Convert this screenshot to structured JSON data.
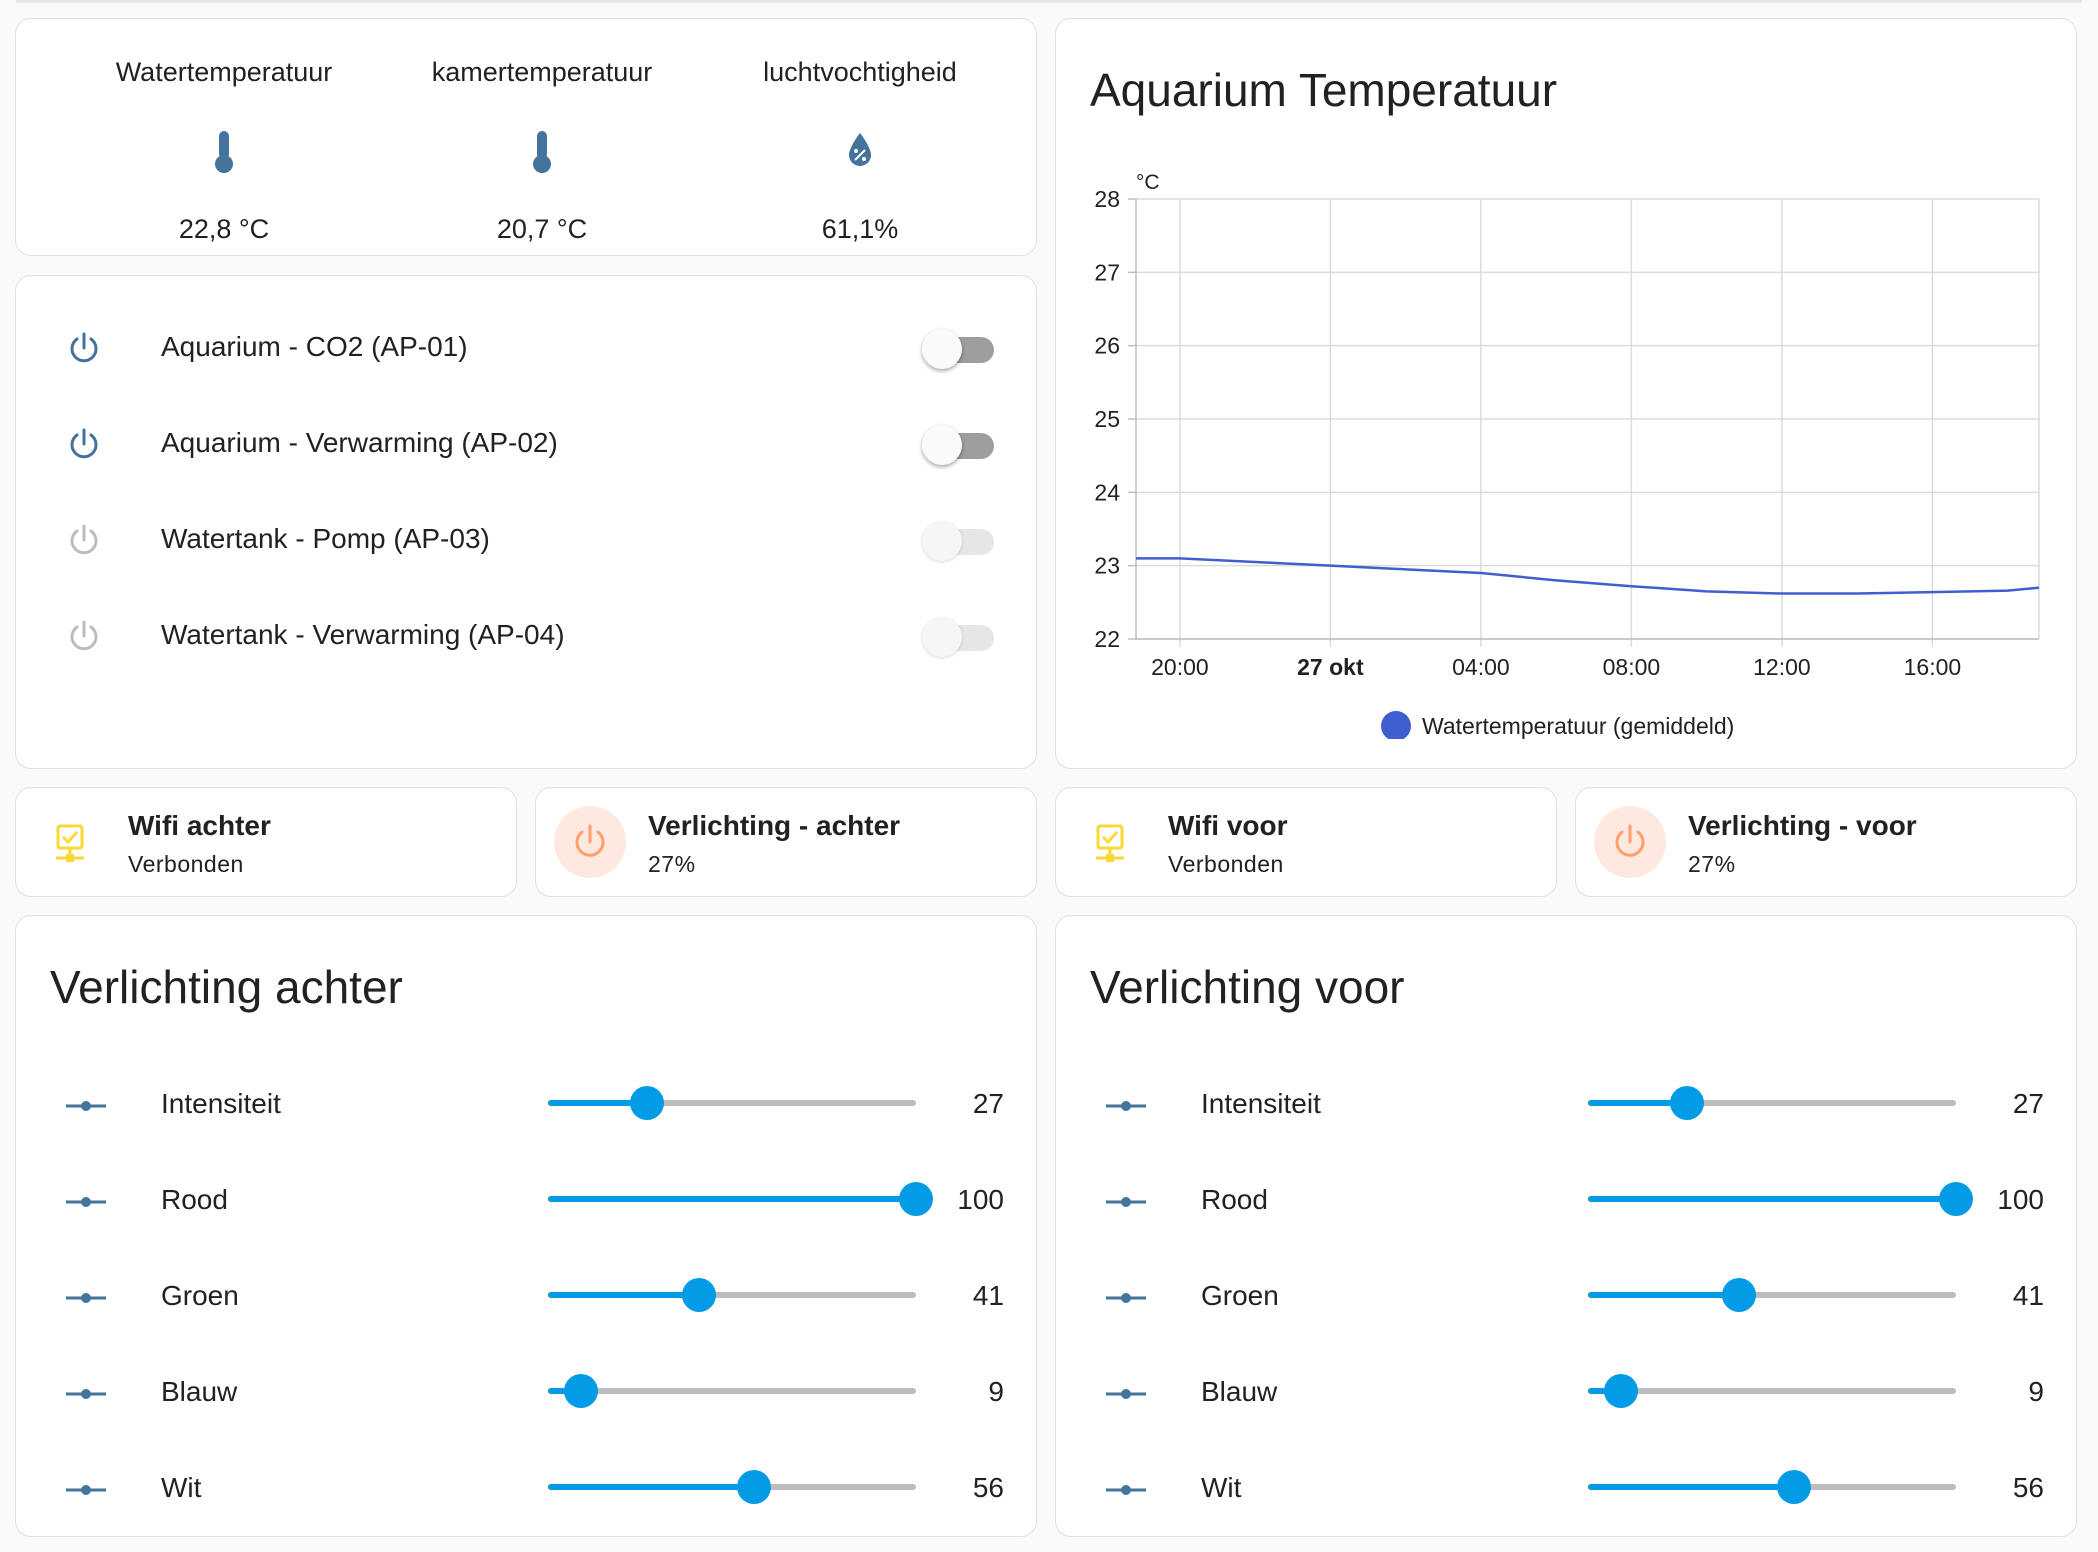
{
  "sensors": [
    {
      "name": "Watertemperatuur",
      "icon": "thermometer-icon",
      "value": "22,8 °C"
    },
    {
      "name": "kamertemperatuur",
      "icon": "thermometer-icon",
      "value": "20,7 °C"
    },
    {
      "name": "luchtvochtigheid",
      "icon": "water-percent-icon",
      "value": "61,1%"
    }
  ],
  "switches": [
    {
      "label": "Aquarium - CO2 (AP-01)",
      "state": "off",
      "available": true
    },
    {
      "label": "Aquarium - Verwarming (AP-02)",
      "state": "off",
      "available": true
    },
    {
      "label": "Watertank - Pomp (AP-03)",
      "state": "off",
      "available": false
    },
    {
      "label": "Watertank - Verwarming (AP-04)",
      "state": "off",
      "available": false
    }
  ],
  "chart": {
    "title": "Aquarium Temperatuur"
  },
  "chart_data": {
    "type": "line",
    "title": "Aquarium Temperatuur",
    "ylabel": "°C",
    "xlabel": "",
    "ylim": [
      22,
      28
    ],
    "yticks": [
      "22",
      "23",
      "24",
      "25",
      "26",
      "27",
      "28"
    ],
    "xticks": [
      "20:00",
      "27 okt",
      "04:00",
      "08:00",
      "12:00",
      "16:00"
    ],
    "grid": true,
    "legend_position": "bottom",
    "series": [
      {
        "name": "Watertemperatuur (gemiddeld)",
        "color": "#3f5fd0",
        "x": [
          "18:50",
          "20:00",
          "22:00",
          "00:00",
          "02:00",
          "04:00",
          "06:00",
          "08:00",
          "10:00",
          "12:00",
          "14:00",
          "16:00",
          "18:00",
          "18:50"
        ],
        "values": [
          23.1,
          23.1,
          23.05,
          23.0,
          22.95,
          22.9,
          22.8,
          22.72,
          22.65,
          22.62,
          22.62,
          22.64,
          22.66,
          22.7
        ]
      }
    ]
  },
  "tiles": [
    {
      "name": "Wifi achter",
      "state": "Verbonden",
      "icon": "network-check-icon",
      "kind": "wifi"
    },
    {
      "name": "Verlichting - achter",
      "state": "27%",
      "icon": "power-icon",
      "kind": "light"
    },
    {
      "name": "Wifi voor",
      "state": "Verbonden",
      "icon": "network-check-icon",
      "kind": "wifi"
    },
    {
      "name": "Verlichting - voor",
      "state": "27%",
      "icon": "power-icon",
      "kind": "light"
    }
  ],
  "slider_cards": [
    {
      "title": "Verlichting achter",
      "rows": [
        {
          "label": "Intensiteit",
          "value": 27,
          "display": "27"
        },
        {
          "label": "Rood",
          "value": 100,
          "display": "100"
        },
        {
          "label": "Groen",
          "value": 41,
          "display": "41"
        },
        {
          "label": "Blauw",
          "value": 9,
          "display": "9"
        },
        {
          "label": "Wit",
          "value": 56,
          "display": "56"
        }
      ]
    },
    {
      "title": "Verlichting voor",
      "rows": [
        {
          "label": "Intensiteit",
          "value": 27,
          "display": "27"
        },
        {
          "label": "Rood",
          "value": 100,
          "display": "100"
        },
        {
          "label": "Groen",
          "value": 41,
          "display": "41"
        },
        {
          "label": "Blauw",
          "value": 9,
          "display": "9"
        },
        {
          "label": "Wit",
          "value": 56,
          "display": "56"
        }
      ]
    }
  ],
  "colors": {
    "icon_active": "#44739e",
    "icon_unavailable": "#bdbdbd",
    "wifi_icon": "#fdd835",
    "light_icon": "#ff9e6d",
    "light_icon_bg": "#fde9df",
    "slider": "#039be5"
  }
}
